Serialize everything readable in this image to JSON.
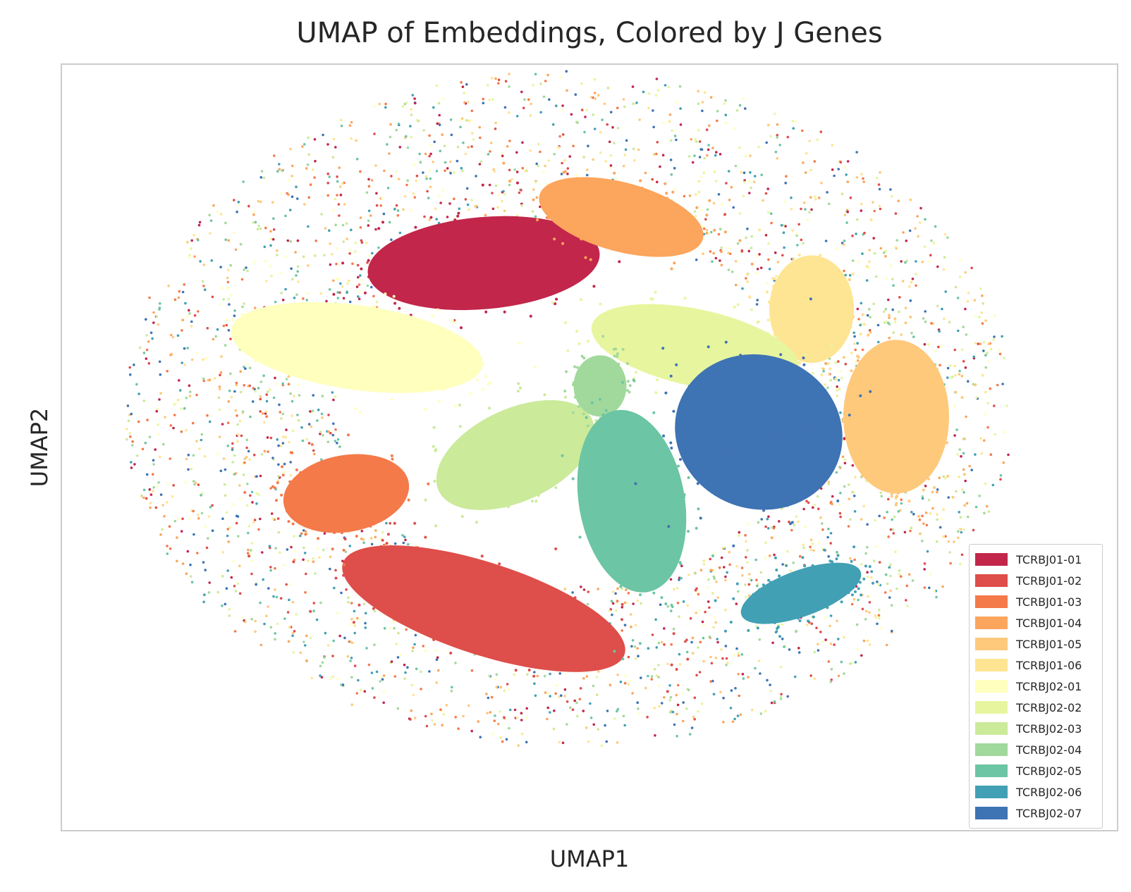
{
  "chart_data": {
    "type": "scatter",
    "title": "UMAP of Embeddings, Colored by J Genes",
    "xlabel": "UMAP1",
    "ylabel": "UMAP2",
    "xticks": "none",
    "yticks": "none",
    "grid": false,
    "legend_position": "bottom-right",
    "series": [
      {
        "name": "TCRBJ01-01",
        "color": "#c2264a",
        "cluster": {
          "cx": 0.4,
          "cy": 0.74,
          "rx": 0.11,
          "ry": 0.06,
          "rot": 5
        }
      },
      {
        "name": "TCRBJ01-02",
        "color": "#de4e4a",
        "cluster": {
          "cx": 0.4,
          "cy": 0.29,
          "rx": 0.14,
          "ry": 0.06,
          "rot": -18
        }
      },
      {
        "name": "TCRBJ01-03",
        "color": "#f47a4a",
        "cluster": {
          "cx": 0.27,
          "cy": 0.44,
          "rx": 0.06,
          "ry": 0.05,
          "rot": 10
        }
      },
      {
        "name": "TCRBJ01-04",
        "color": "#fca55d",
        "cluster": {
          "cx": 0.53,
          "cy": 0.8,
          "rx": 0.08,
          "ry": 0.045,
          "rot": -15
        }
      },
      {
        "name": "TCRBJ01-05",
        "color": "#fec97b",
        "cluster": {
          "cx": 0.79,
          "cy": 0.54,
          "rx": 0.05,
          "ry": 0.1,
          "rot": 0
        }
      },
      {
        "name": "TCRBJ01-06",
        "color": "#fee593",
        "cluster": {
          "cx": 0.71,
          "cy": 0.68,
          "rx": 0.04,
          "ry": 0.07,
          "rot": 0
        }
      },
      {
        "name": "TCRBJ02-01",
        "color": "#ffffbe",
        "cluster": {
          "cx": 0.28,
          "cy": 0.63,
          "rx": 0.12,
          "ry": 0.055,
          "rot": -8
        }
      },
      {
        "name": "TCRBJ02-02",
        "color": "#e8f59f",
        "cluster": {
          "cx": 0.6,
          "cy": 0.63,
          "rx": 0.1,
          "ry": 0.05,
          "rot": -12
        }
      },
      {
        "name": "TCRBJ02-03",
        "color": "#cbea9a",
        "cluster": {
          "cx": 0.43,
          "cy": 0.49,
          "rx": 0.08,
          "ry": 0.06,
          "rot": 25
        }
      },
      {
        "name": "TCRBJ02-04",
        "color": "#a1d99c",
        "cluster": {
          "cx": 0.51,
          "cy": 0.58,
          "rx": 0.025,
          "ry": 0.04,
          "rot": 0
        }
      },
      {
        "name": "TCRBJ02-05",
        "color": "#6cc5a4",
        "cluster": {
          "cx": 0.54,
          "cy": 0.43,
          "rx": 0.05,
          "ry": 0.12,
          "rot": 10
        }
      },
      {
        "name": "TCRBJ02-06",
        "color": "#42a0b4",
        "cluster": {
          "cx": 0.7,
          "cy": 0.31,
          "rx": 0.06,
          "ry": 0.03,
          "rot": 20
        }
      },
      {
        "name": "TCRBJ02-07",
        "color": "#3e73b4",
        "cluster": {
          "cx": 0.66,
          "cy": 0.52,
          "rx": 0.08,
          "ry": 0.1,
          "rot": -20
        }
      }
    ]
  }
}
